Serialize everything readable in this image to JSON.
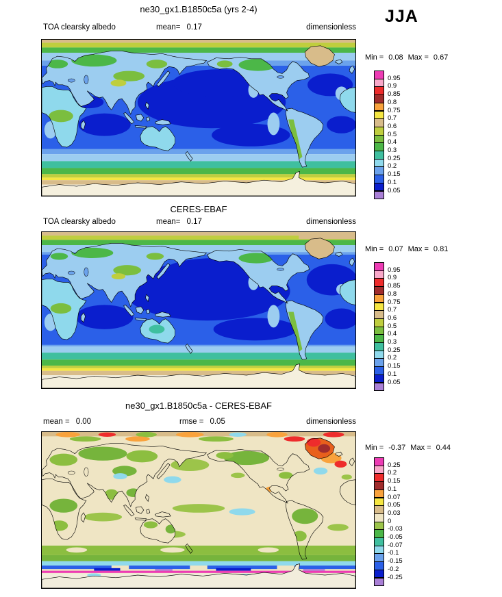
{
  "season_label": "JJA",
  "panels": [
    {
      "title": "ne30_gx1.B1850c5a (yrs 2-4)",
      "row": {
        "left_label": "TOA clearsky albedo",
        "center_label": "mean=",
        "center_value": "0.17",
        "right_label": "dimensionless"
      },
      "minmax": {
        "min_label": "Min =",
        "min_value": "0.08",
        "max_label": "Max =",
        "max_value": "0.67"
      },
      "colorbar": {
        "tick_labels": [
          "0.95",
          "0.9",
          "0.85",
          "0.8",
          "0.75",
          "0.7",
          "0.6",
          "0.5",
          "0.4",
          "0.3",
          "0.25",
          "0.2",
          "0.15",
          "0.1",
          "0.05"
        ],
        "colors_top_to_bottom": [
          "#ED3CB4",
          "#F9A8C9",
          "#EE2C2C",
          "#A02C2C",
          "#F9A23C",
          "#F5E642",
          "#D8BC8A",
          "#BFCE3E",
          "#7BBE3F",
          "#4CB748",
          "#3FBF9F",
          "#8FD9EC",
          "#6BA2EC",
          "#2B60E8",
          "#0A1ECD",
          "#A97FD6"
        ]
      }
    },
    {
      "title": "CERES-EBAF",
      "row": {
        "left_label": "TOA clearsky albedo",
        "center_label": "mean=",
        "center_value": "0.17",
        "right_label": "dimensionless"
      },
      "minmax": {
        "min_label": "Min =",
        "min_value": "0.07",
        "max_label": "Max =",
        "max_value": "0.81"
      },
      "colorbar": {
        "tick_labels": [
          "0.95",
          "0.9",
          "0.85",
          "0.8",
          "0.75",
          "0.7",
          "0.6",
          "0.5",
          "0.4",
          "0.3",
          "0.25",
          "0.2",
          "0.15",
          "0.1",
          "0.05"
        ],
        "colors_top_to_bottom": [
          "#ED3CB4",
          "#F9A8C9",
          "#EE2C2C",
          "#A02C2C",
          "#F9A23C",
          "#F5E642",
          "#D8BC8A",
          "#BFCE3E",
          "#7BBE3F",
          "#4CB748",
          "#3FBF9F",
          "#8FD9EC",
          "#6BA2EC",
          "#2B60E8",
          "#0A1ECD",
          "#A97FD6"
        ]
      }
    },
    {
      "title": "ne30_gx1.B1850c5a - CERES-EBAF",
      "row": {
        "left_label": "mean =",
        "left_value": "0.00",
        "center_label": "rmse =",
        "center_value": "0.05",
        "right_label": "dimensionless"
      },
      "minmax": {
        "min_label": "Min =",
        "min_value": "-0.37",
        "max_label": "Max =",
        "max_value": "0.44"
      },
      "colorbar": {
        "tick_labels": [
          "0.25",
          "0.2",
          "0.15",
          "0.1",
          "0.07",
          "0.05",
          "0.03",
          "0",
          "-0.03",
          "-0.05",
          "-0.07",
          "-0.1",
          "-0.15",
          "-0.2",
          "-0.25"
        ],
        "colors_top_to_bottom": [
          "#ED3CB4",
          "#F9A8C9",
          "#EE2C2C",
          "#A02C2C",
          "#F9A23C",
          "#F5E642",
          "#D8BC8A",
          "#EFE5C4",
          "#9CC44A",
          "#4CB748",
          "#3FBF9F",
          "#8FD9EC",
          "#6BA2EC",
          "#2B60E8",
          "#0A1ECD",
          "#A97FD6"
        ]
      }
    }
  ],
  "chart_data": [
    {
      "type": "heatmap",
      "title": "ne30_gx1.B1850c5a (yrs 2-4)",
      "variable": "TOA clearsky albedo",
      "season": "JJA",
      "units": "dimensionless",
      "projection": "global latitude-longitude map, 0-360E",
      "stats": {
        "mean": 0.17,
        "min": 0.08,
        "max": 0.67
      },
      "contour_levels": [
        0.05,
        0.1,
        0.15,
        0.2,
        0.25,
        0.3,
        0.4,
        0.5,
        0.6,
        0.7,
        0.75,
        0.8,
        0.85,
        0.9,
        0.95
      ],
      "legend_position": "right",
      "description": "Model clearsky albedo: 0.05-0.15 (deep blue) over tropical/subtropical oceans, 0.15-0.25 over land and higher-latitude oceans, 0.25-0.5 green/teal bands near 60N and 50-60S, 0.5-0.7 yellow/tan over polar sea-ice fringes, tan/white over Antarctica and Greenland"
    },
    {
      "type": "heatmap",
      "title": "CERES-EBAF",
      "variable": "TOA clearsky albedo",
      "season": "JJA",
      "units": "dimensionless",
      "projection": "global latitude-longitude map, 0-360E",
      "stats": {
        "mean": 0.17,
        "min": 0.07,
        "max": 0.81
      },
      "contour_levels": [
        0.05,
        0.1,
        0.15,
        0.2,
        0.25,
        0.3,
        0.4,
        0.5,
        0.6,
        0.7,
        0.75,
        0.8,
        0.85,
        0.9,
        0.95
      ],
      "legend_position": "right",
      "description": "Observed (CERES-EBAF) clearsky albedo with same spatial structure; slightly more extensive deep-blue (0.05-0.1) ocean areas and more tan over Arctic ice"
    },
    {
      "type": "heatmap",
      "title": "ne30_gx1.B1850c5a - CERES-EBAF",
      "variable": "TOA clearsky albedo difference",
      "season": "JJA",
      "units": "dimensionless",
      "projection": "global latitude-longitude map, 0-360E",
      "stats": {
        "mean": 0.0,
        "rmse": 0.05,
        "min": -0.37,
        "max": 0.44
      },
      "contour_levels": [
        -0.25,
        -0.2,
        -0.15,
        -0.1,
        -0.07,
        -0.05,
        -0.03,
        0,
        0.03,
        0.05,
        0.07,
        0.1,
        0.15,
        0.2,
        0.25
      ],
      "legend_position": "right",
      "description": "Difference map: mostly 0 to 0.03 (beige); -0.05 to -0.03 (green) over many continents, tropics and a 45-60S band; positive (orange/red) over Greenland, Arctic fringe and N Atlantic; strong negative blue/cyan stripes and a magenta positive line near the Antarctic sea-ice edge"
    }
  ]
}
